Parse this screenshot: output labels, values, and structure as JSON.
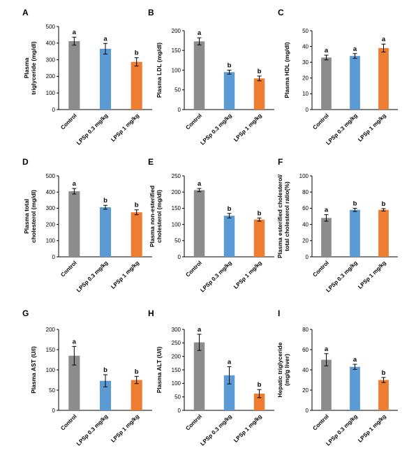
{
  "colors": {
    "control": "#8c8c8c",
    "low_dose": "#5b9bd5",
    "high_dose": "#ed7d31",
    "axis": "#000000"
  },
  "chart_data": [
    {
      "panel": "A",
      "type": "bar",
      "ylabel": [
        "Plasma",
        "triglyceride (mg/dl)"
      ],
      "categories": [
        "Control",
        "LPSp 0.3 mg/kg",
        "LPSp 1 mg/kg"
      ],
      "values": [
        412,
        366,
        287
      ],
      "errors": [
        24,
        32,
        25
      ],
      "letters": [
        "a",
        "a",
        "b"
      ],
      "ylim": [
        0,
        500
      ],
      "yticks": [
        0,
        100,
        200,
        300,
        400,
        500
      ]
    },
    {
      "panel": "B",
      "type": "bar",
      "ylabel": [
        "Plasma LDL (mg/dl)"
      ],
      "categories": [
        "Control",
        "LPSp 0.3 mg/kg",
        "LPSp 1 mg/kg"
      ],
      "values": [
        173,
        95,
        79
      ],
      "errors": [
        9,
        5,
        6
      ],
      "letters": [
        "a",
        "b",
        "b"
      ],
      "ylim": [
        0,
        200
      ],
      "yticks": [
        0,
        50,
        100,
        150,
        200
      ]
    },
    {
      "panel": "C",
      "type": "bar",
      "ylabel": [
        "Plasma HDL (mg/dl)"
      ],
      "categories": [
        "Control",
        "LPSp 0.3 mg/kg",
        "LPSp 1 mg/kg"
      ],
      "values": [
        33,
        34,
        39
      ],
      "errors": [
        1.5,
        1.5,
        2.5
      ],
      "letters": [
        "a",
        "a",
        "a"
      ],
      "ylim": [
        0,
        50
      ],
      "yticks": [
        0,
        10,
        20,
        30,
        40,
        50
      ]
    },
    {
      "panel": "D",
      "type": "bar",
      "ylabel": [
        "Plasma total",
        "cholesterol (mg/dl)"
      ],
      "categories": [
        "Control",
        "LPSp 0.3 mg/kg",
        "LPSp 1 mg/kg"
      ],
      "values": [
        405,
        306,
        275
      ],
      "errors": [
        17,
        12,
        15
      ],
      "letters": [
        "a",
        "b",
        "b"
      ],
      "ylim": [
        0,
        500
      ],
      "yticks": [
        0,
        100,
        200,
        300,
        400,
        500
      ]
    },
    {
      "panel": "E",
      "type": "bar",
      "ylabel": [
        "Plasma non-esterified",
        "cholesterol (mg/dl)"
      ],
      "categories": [
        "Control",
        "LPSp 0.3 mg/kg",
        "LPSp 1 mg/kg"
      ],
      "values": [
        206,
        127,
        115
      ],
      "errors": [
        5,
        7,
        5
      ],
      "letters": [
        "a",
        "b",
        "b"
      ],
      "ylim": [
        0,
        250
      ],
      "yticks": [
        0,
        50,
        100,
        150,
        200,
        250
      ]
    },
    {
      "panel": "F",
      "type": "bar",
      "ylabel": [
        "Plasma esterified cholesterol/",
        "total cholesterol ratio(%)"
      ],
      "categories": [
        "Control",
        "LPSp 0.3 mg/kg",
        "LPSp 1 mg/kg"
      ],
      "values": [
        48,
        58,
        58
      ],
      "errors": [
        4,
        2,
        1.5
      ],
      "letters": [
        "a",
        "b",
        "b"
      ],
      "ylim": [
        0,
        100
      ],
      "yticks": [
        0,
        20,
        40,
        60,
        80,
        100
      ]
    },
    {
      "panel": "G",
      "type": "bar",
      "ylabel": [
        "Plasma AST (U/l)"
      ],
      "categories": [
        "Control",
        "LPSp 0.3 mg/kg",
        "LPSp 1 mg/kg"
      ],
      "values": [
        135,
        73,
        75
      ],
      "errors": [
        23,
        15,
        9
      ],
      "letters": [
        "a",
        "b",
        "b"
      ],
      "ylim": [
        0,
        200
      ],
      "yticks": [
        0,
        50,
        100,
        150,
        200
      ]
    },
    {
      "panel": "H",
      "type": "bar",
      "ylabel": [
        "Plasma ALT (U/l)"
      ],
      "categories": [
        "Control",
        "LPSp 0.3 mg/kg",
        "LPSp 1 mg/kg"
      ],
      "values": [
        252,
        130,
        62
      ],
      "errors": [
        30,
        32,
        15
      ],
      "letters": [
        "a",
        "a",
        "b"
      ],
      "ylim": [
        0,
        300
      ],
      "yticks": [
        0,
        50,
        100,
        150,
        200,
        250,
        300
      ]
    },
    {
      "panel": "I",
      "type": "bar",
      "ylabel": [
        "Hepatic triglyceride",
        "(mg/g liver)"
      ],
      "categories": [
        "Control",
        "LPSp 0.3 mg/kg",
        "LPSp 1 mg/kg"
      ],
      "values": [
        50,
        43,
        30
      ],
      "errors": [
        6,
        2.5,
        2.5
      ],
      "letters": [
        "a",
        "a",
        "b"
      ],
      "ylim": [
        0,
        80
      ],
      "yticks": [
        0,
        20,
        40,
        60,
        80
      ]
    }
  ]
}
